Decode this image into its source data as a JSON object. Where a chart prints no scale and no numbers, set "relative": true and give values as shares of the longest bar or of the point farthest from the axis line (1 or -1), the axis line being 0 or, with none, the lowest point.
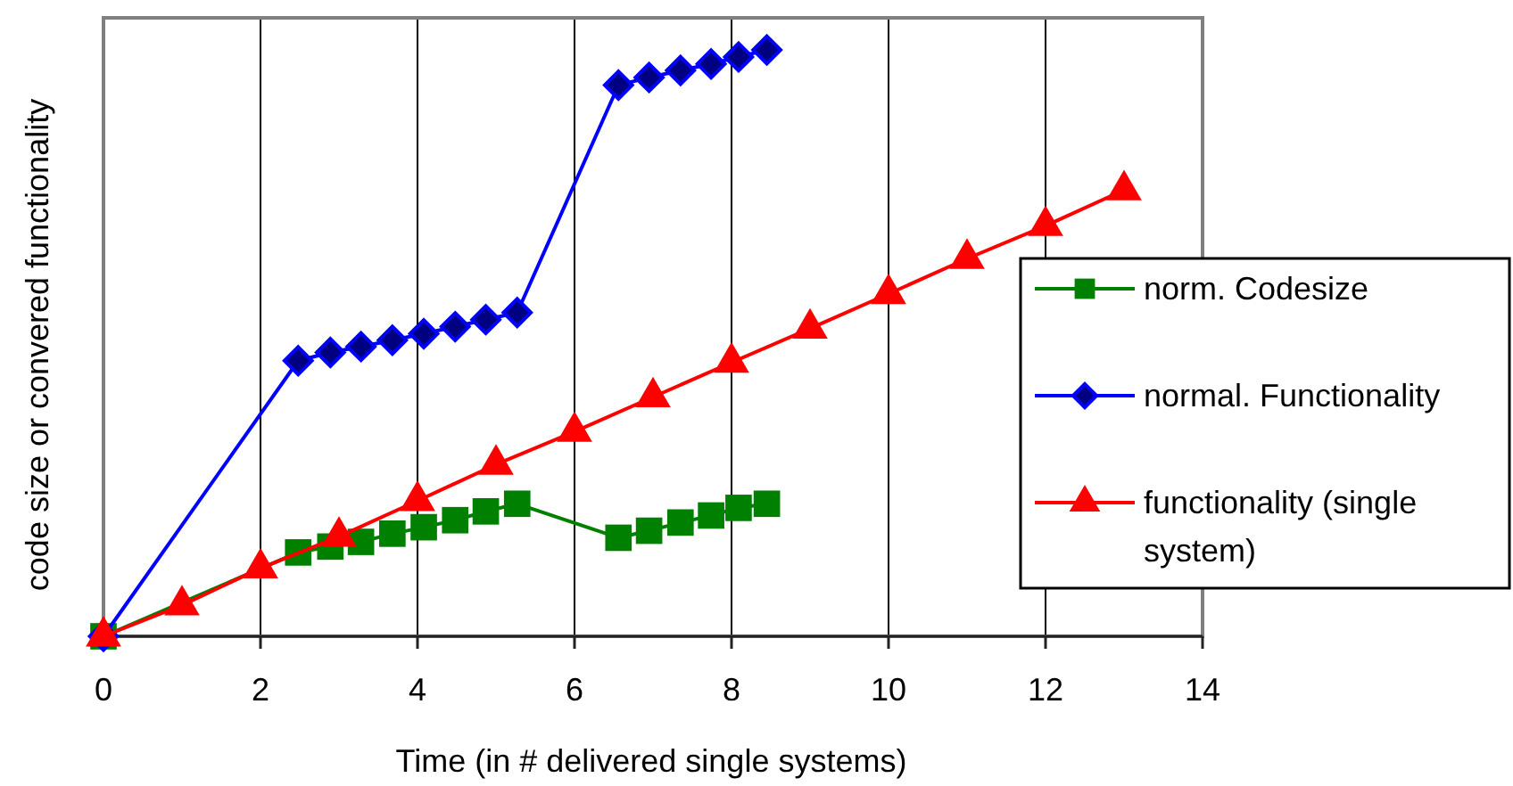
{
  "chart_data": {
    "type": "line",
    "xlabel": "Time (in # delivered single systems)",
    "ylabel": "code size or convered functionality",
    "relative": true,
    "xlim": [
      0,
      14
    ],
    "xticks": [
      0,
      2,
      4,
      6,
      8,
      10,
      12,
      14
    ],
    "grid": "x",
    "legend": "right",
    "series": [
      {
        "name": "norm. Codesize",
        "color": "#008000",
        "marker": "square",
        "x": [
          0,
          2.48,
          2.89,
          3.28,
          3.68,
          4.08,
          4.48,
          4.87,
          5.27,
          6.56,
          6.95,
          7.35,
          7.74,
          8.09,
          8.45
        ],
        "values": [
          0,
          0.143,
          0.153,
          0.161,
          0.175,
          0.186,
          0.198,
          0.213,
          0.226,
          0.168,
          0.18,
          0.194,
          0.206,
          0.219,
          0.226
        ]
      },
      {
        "name": "normal. Functionality",
        "color": "#0000ff",
        "marker": "diamond",
        "x": [
          0,
          2.48,
          2.89,
          3.28,
          3.68,
          4.08,
          4.48,
          4.87,
          5.27,
          6.56,
          6.95,
          7.35,
          7.74,
          8.09,
          8.45
        ],
        "values": [
          0,
          0.47,
          0.484,
          0.494,
          0.505,
          0.516,
          0.528,
          0.54,
          0.552,
          0.94,
          0.953,
          0.965,
          0.976,
          0.988,
          1
        ]
      },
      {
        "name": "functionality (single system)",
        "color": "#ff0000",
        "marker": "triangle",
        "x": [
          0,
          1,
          2,
          3,
          4,
          5,
          6,
          7,
          8,
          9,
          10,
          11,
          12,
          13
        ],
        "values": [
          0,
          0.053,
          0.116,
          0.17,
          0.231,
          0.293,
          0.349,
          0.408,
          0.467,
          0.525,
          0.584,
          0.644,
          0.7,
          0.761
        ]
      }
    ]
  }
}
